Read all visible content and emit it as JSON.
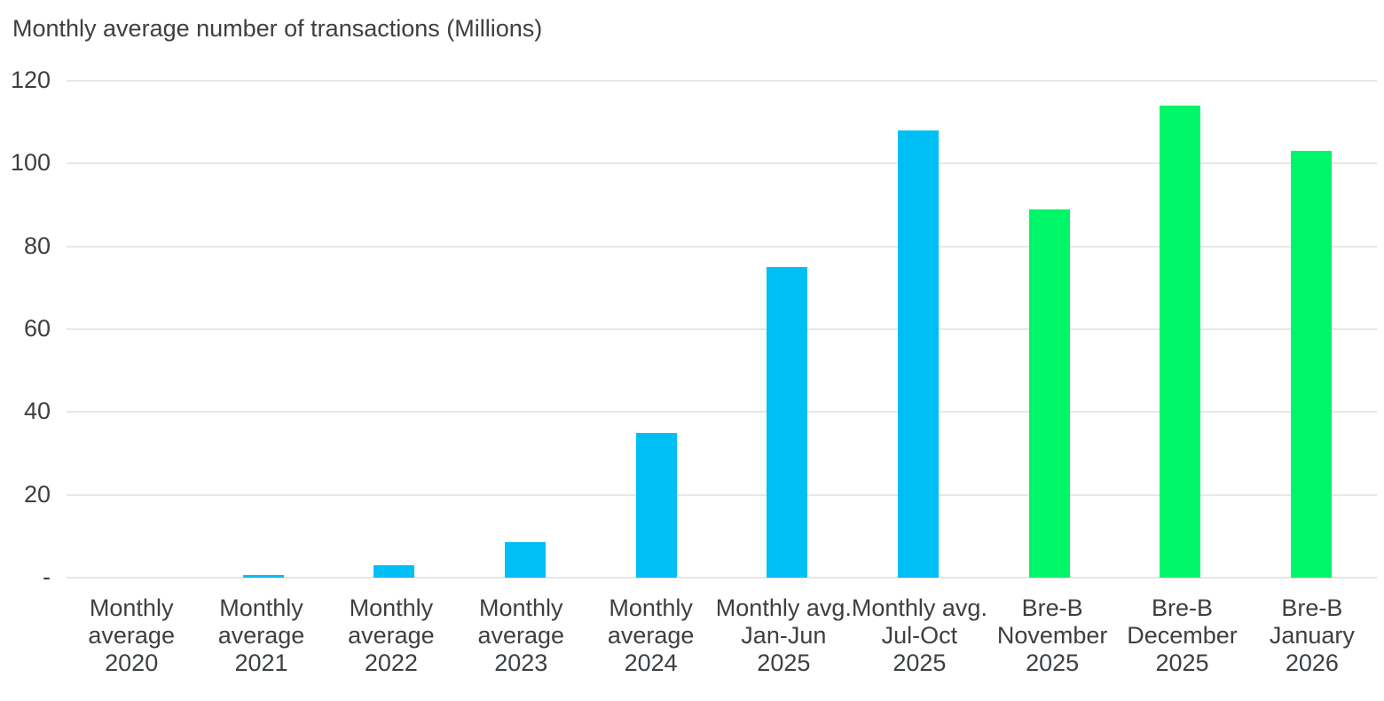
{
  "title": "Monthly average number of transactions (Millions)",
  "chart_data": {
    "type": "bar",
    "title": "Monthly average number of transactions (Millions)",
    "xlabel": "",
    "ylabel": "Monthly average number of transactions (Millions)",
    "ylim": [
      0,
      120
    ],
    "ytick_values": [
      0,
      20,
      40,
      60,
      80,
      100,
      120
    ],
    "ytick_labels": [
      "-",
      "20",
      "40",
      "60",
      "80",
      "100",
      "120"
    ],
    "grid": true,
    "legend": "none",
    "categories": [
      "Monthly average 2020",
      "Monthly average 2021",
      "Monthly average 2022",
      "Monthly average 2023",
      "Monthly average 2024",
      "Monthly avg. Jan-Jun 2025",
      "Monthly avg. Jul-Oct 2025",
      "Bre-B November 2025",
      "Bre-B December 2025",
      "Bre-B January 2026"
    ],
    "category_label_lines": [
      [
        "Monthly",
        "average",
        "2020"
      ],
      [
        "Monthly",
        "average",
        "2021"
      ],
      [
        "Monthly",
        "average",
        "2022"
      ],
      [
        "Monthly",
        "average",
        "2023"
      ],
      [
        "Monthly",
        "average",
        "2024"
      ],
      [
        "Monthly avg.",
        "Jan-Jun",
        "2025"
      ],
      [
        "Monthly avg.",
        "Jul-Oct",
        "2025"
      ],
      [
        "Bre-B",
        "November",
        "2025"
      ],
      [
        "Bre-B",
        "December",
        "2025"
      ],
      [
        "Bre-B",
        "January",
        "2026"
      ]
    ],
    "values": [
      0,
      0.6,
      3,
      8.5,
      35,
      75,
      108,
      89,
      114,
      103
    ],
    "bar_colors": [
      "#00bff5",
      "#00bff5",
      "#00bff5",
      "#00bff5",
      "#00bff5",
      "#00bff5",
      "#00bff5",
      "#00f669",
      "#00f669",
      "#00f669"
    ],
    "colors": {
      "blue_bars": "#00bff5",
      "green_bars": "#00f669",
      "gridline": "#e7e7e7",
      "text": "#3c4043",
      "background": "#ffffff"
    }
  }
}
